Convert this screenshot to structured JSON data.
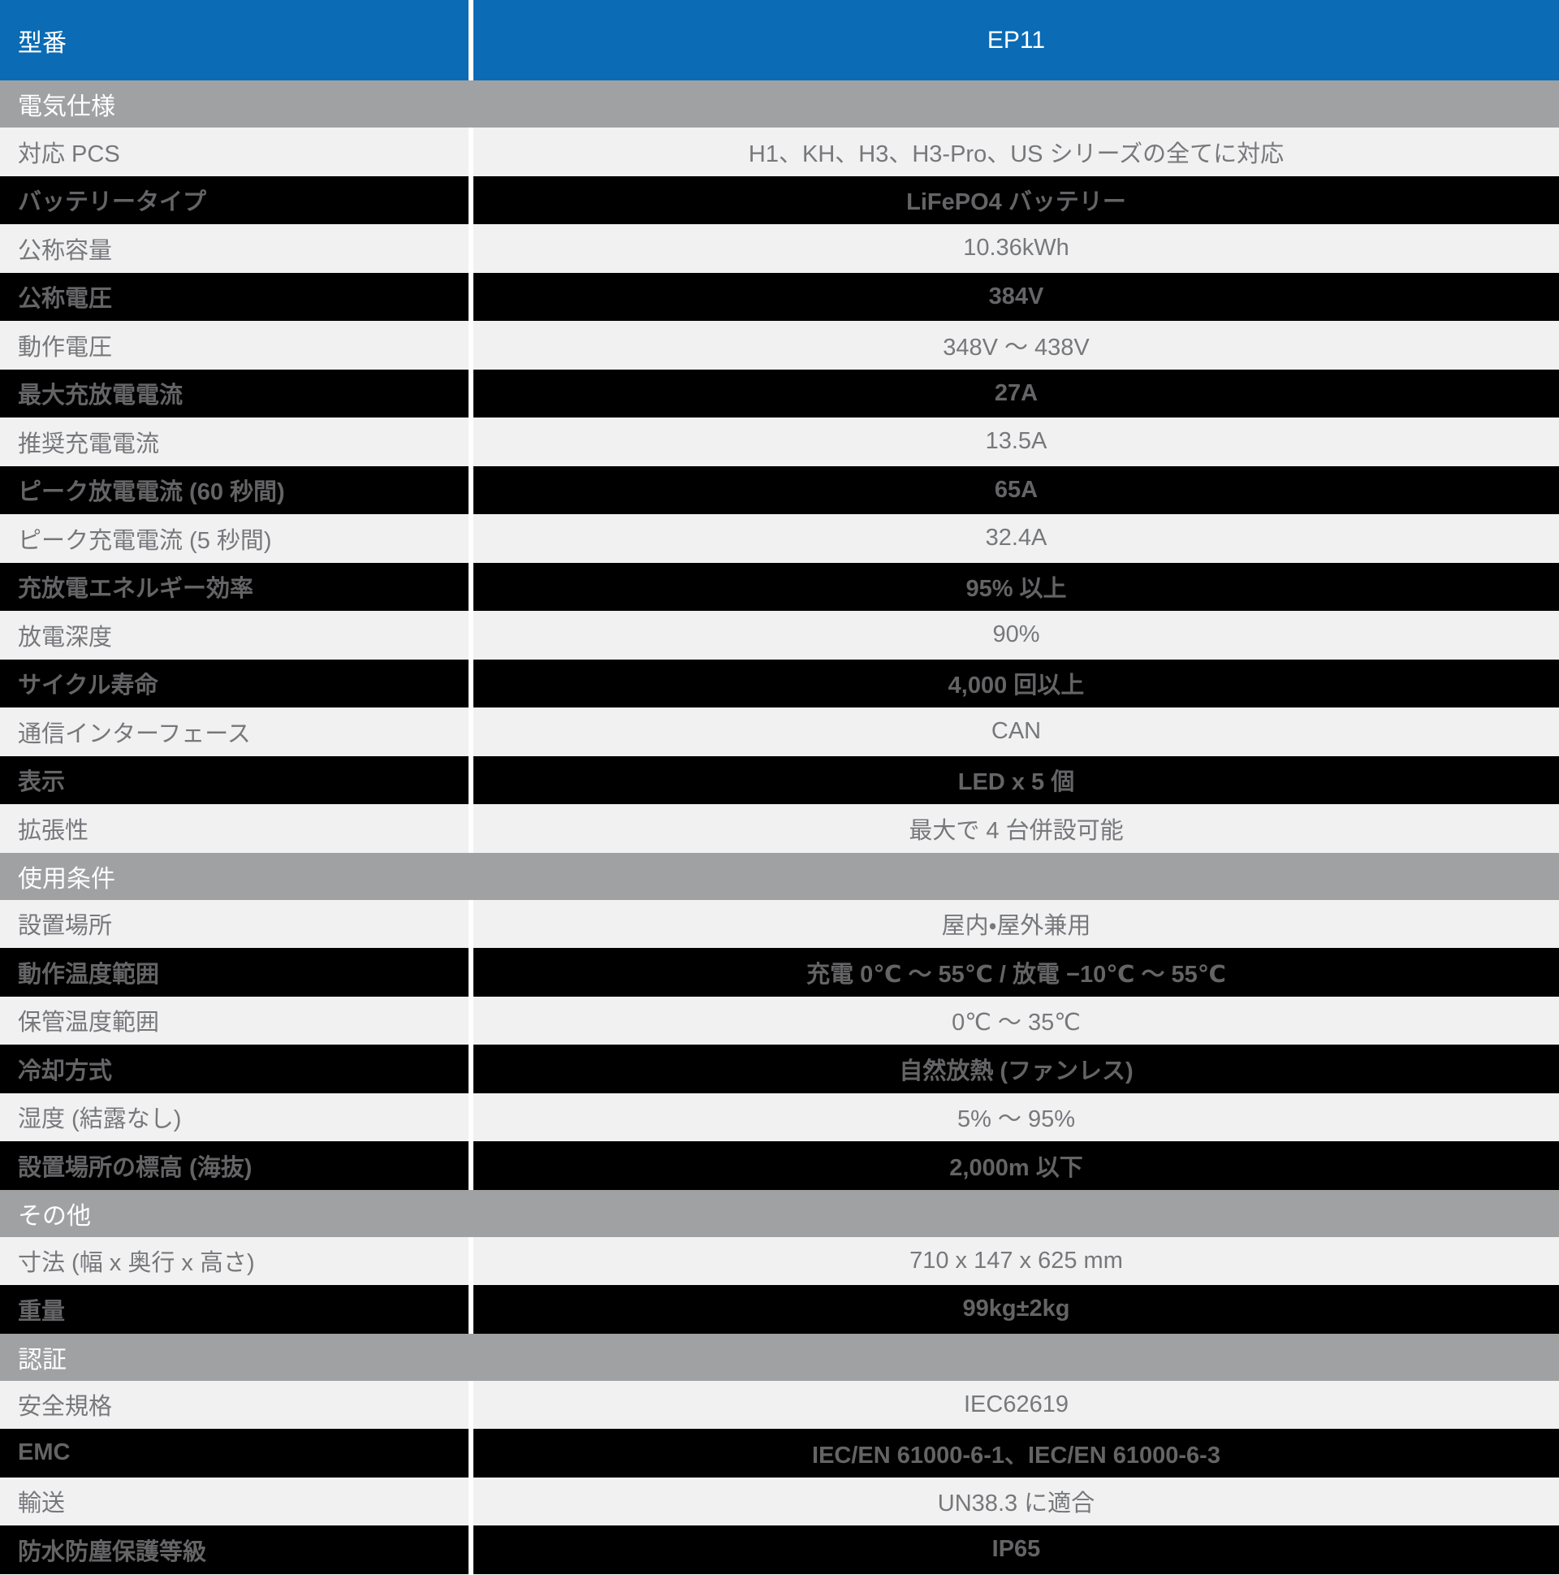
{
  "colors": {
    "header_blue": "#0b6bb4",
    "section_gray": "#9fa1a3",
    "row_light": "#f1f1f2",
    "row_dark": "#000000",
    "text_gray": "#77787b",
    "text_dark_row": "#646466",
    "divider_white": "#ffffff"
  },
  "header": {
    "model_label": "型番",
    "model_value": "EP11"
  },
  "sections": [
    {
      "title": "電気仕様",
      "rows": [
        {
          "label": "対応 PCS",
          "value": "H1、KH、H3、H3-Pro、US シリーズの全てに対応",
          "dark": false
        },
        {
          "label": "バッテリータイプ",
          "value": "LiFePO4 バッテリー",
          "dark": true
        },
        {
          "label": "公称容量",
          "value": "10.36kWh",
          "dark": false
        },
        {
          "label": "公称電圧",
          "value": "384V",
          "dark": true
        },
        {
          "label": "動作電圧",
          "value": "348V ～ 438V",
          "dark": false
        },
        {
          "label": "最大充放電電流",
          "value": "27A",
          "dark": true
        },
        {
          "label": "推奨充電電流",
          "value": "13.5A",
          "dark": false
        },
        {
          "label": "ピーク放電電流 (60 秒間)",
          "value": "65A",
          "dark": true
        },
        {
          "label": "ピーク充電電流 (5 秒間)",
          "value": "32.4A",
          "dark": false
        },
        {
          "label": "充放電エネルギー効率",
          "value": "95% 以上",
          "dark": true
        },
        {
          "label": "放電深度",
          "value": "90%",
          "dark": false
        },
        {
          "label": "サイクル寿命",
          "value": "4,000 回以上",
          "dark": true
        },
        {
          "label": "通信インターフェース",
          "value": "CAN",
          "dark": false
        },
        {
          "label": "表示",
          "value": "LED x 5 個",
          "dark": true
        },
        {
          "label": "拡張性",
          "value": "最大で 4 台併設可能",
          "dark": false
        }
      ]
    },
    {
      "title": "使用条件",
      "rows": [
        {
          "label": "設置場所",
          "value": "屋内・屋外兼用",
          "dark": false
        },
        {
          "label": "動作温度範囲",
          "value": "充電 0℃ ～ 55℃ / 放電 −10℃ ～ 55℃",
          "dark": true
        },
        {
          "label": "保管温度範囲",
          "value": "0℃ ～ 35℃",
          "dark": false
        },
        {
          "label": "冷却方式",
          "value": "自然放熱 (ファンレス)",
          "dark": true
        },
        {
          "label": "湿度 (結露なし)",
          "value": "5% ～ 95%",
          "dark": false
        },
        {
          "label": "設置場所の標高 (海抜)",
          "value": "2,000m 以下",
          "dark": true
        }
      ]
    },
    {
      "title": "その他",
      "rows": [
        {
          "label": "寸法 (幅 x 奥行 x 高さ)",
          "value": "710 x 147 x 625 mm",
          "dark": false
        },
        {
          "label": "重量",
          "value": "99kg±2kg",
          "dark": true
        }
      ]
    },
    {
      "title": "認証",
      "rows": [
        {
          "label": "安全規格",
          "value": "IEC62619",
          "dark": false
        },
        {
          "label": "EMC",
          "value": "IEC/EN 61000-6-1、IEC/EN 61000-6-3",
          "dark": true
        },
        {
          "label": "輸送",
          "value": "UN38.3 に適合",
          "dark": false
        },
        {
          "label": "防水防塵保護等級",
          "value": "IP65",
          "dark": true
        }
      ]
    }
  ]
}
